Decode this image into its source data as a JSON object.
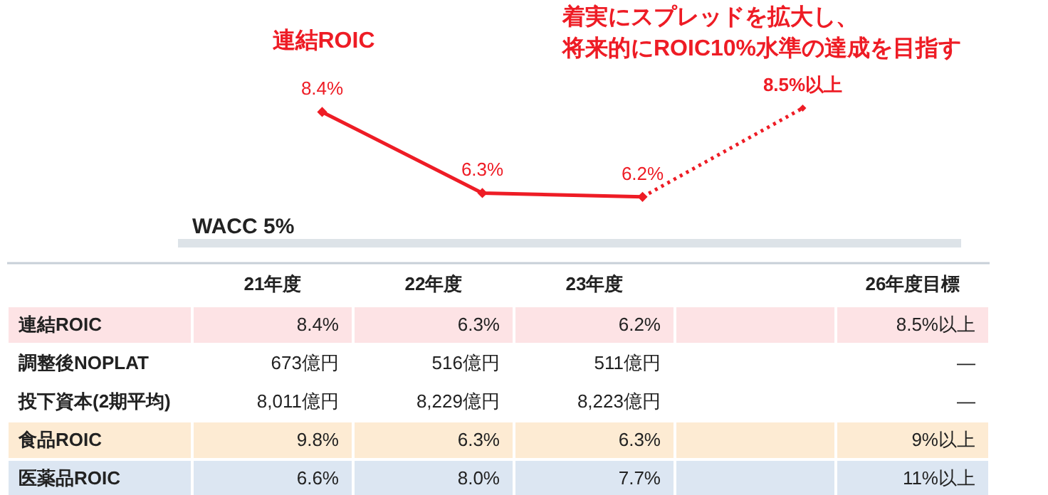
{
  "chart_data": [
    {
      "type": "line",
      "categories": [
        null,
        null,
        null,
        null
      ],
      "tick_labels": false,
      "marker": "diamond",
      "annotations": [
        "着実にスプレッドを拡大し、",
        "将来的にROIC10%水準の達成を目指す"
      ],
      "series": [
        {
          "name": "連結ROIC",
          "color": "#ee1c25",
          "line_style": "solid",
          "values": [
            8.4,
            6.3,
            6.2,
            null
          ],
          "value_labels": [
            "8.4%",
            "6.3%",
            "6.2%",
            null
          ]
        },
        {
          "color": "#ee1c25",
          "line_style": "dotted",
          "values": [
            null,
            null,
            6.2,
            8.5
          ],
          "value_labels": [
            null,
            null,
            null,
            "8.5%以上"
          ]
        }
      ],
      "ref_lines": [
        {
          "axis": "y",
          "value": 5,
          "label": "WACC 5%",
          "color": "#dde3e8"
        }
      ]
    },
    {
      "type": "other",
      "categories": [
        "21年度",
        "22年度",
        "23年度",
        null,
        "26年度目標"
      ],
      "y_categories": [
        "連結ROIC",
        "調整後NOPLAT",
        "投下資本(2期平均)",
        "食品ROIC",
        "医薬品ROIC"
      ],
      "colors": [
        "#fde3e5",
        "#ffffff",
        "#ffffff",
        "#fdebd3",
        "#dce6f2"
      ],
      "cell_labels": [
        [
          "8.4%",
          "6.3%",
          "6.2%",
          null,
          "8.5%以上"
        ],
        [
          "673億円",
          "516億円",
          "511億円",
          null,
          "—"
        ],
        [
          "8,011億円",
          "8,229億円",
          "8,223億円",
          null,
          "—"
        ],
        [
          "9.8%",
          "6.3%",
          "6.3%",
          null,
          "9%以上"
        ],
        [
          "6.6%",
          "8.0%",
          "7.7%",
          null,
          "11%以上"
        ]
      ]
    }
  ]
}
